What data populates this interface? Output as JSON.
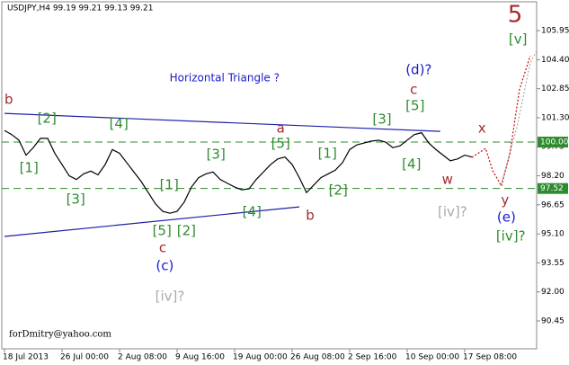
{
  "chart_data": {
    "type": "line",
    "title": "USDJPY,H4  99.19 99.21 99.13 99.21",
    "watermark": "forDmitry@yahoo.com",
    "color": "#000000",
    "categories": [
      "18 Jul 2013",
      null,
      null,
      null,
      null,
      null,
      null,
      null,
      "26 Jul 00:00",
      null,
      null,
      null,
      null,
      null,
      null,
      null,
      "2 Aug 08:00",
      null,
      null,
      null,
      null,
      null,
      null,
      null,
      "9 Aug 16:00",
      null,
      null,
      null,
      null,
      null,
      null,
      null,
      "19 Aug 00:00",
      null,
      null,
      null,
      null,
      null,
      null,
      null,
      "26 Aug 08:00",
      null,
      null,
      null,
      null,
      null,
      null,
      null,
      "2 Sep 16:00",
      null,
      null,
      null,
      null,
      null,
      null,
      null,
      "10 Sep 00:00",
      null,
      null,
      null,
      null,
      null,
      null,
      null,
      "17 Sep 08:00",
      null,
      null,
      null,
      null,
      null,
      null,
      null,
      null,
      null,
      null
    ],
    "values": [
      100.62,
      100.4,
      100.1,
      99.3,
      99.7,
      100.2,
      100.2,
      99.4,
      98.8,
      98.2,
      98.0,
      98.3,
      98.45,
      98.25,
      98.8,
      99.6,
      99.4,
      98.9,
      98.4,
      97.9,
      97.3,
      96.7,
      96.3,
      96.2,
      96.3,
      96.8,
      97.6,
      98.1,
      98.3,
      98.4,
      98.0,
      97.8,
      97.6,
      97.45,
      97.5,
      98.0,
      98.4,
      98.8,
      99.1,
      99.2,
      98.8,
      98.1,
      97.3,
      97.7,
      98.1,
      98.3,
      98.5,
      98.9,
      99.6,
      99.85,
      99.95,
      100.05,
      100.1,
      100.0,
      99.7,
      99.8,
      100.1,
      100.4,
      100.5,
      99.95,
      99.6,
      99.3,
      99.0,
      99.1,
      99.3,
      99.2,
      null,
      null,
      null,
      null,
      null,
      null,
      null,
      null,
      null
    ],
    "ylim": [
      88.96,
      107.49
    ],
    "yticks": [
      90.45,
      {
        "value": 92,
        "label": "92.00"
      },
      93.55,
      {
        "value": 95.1,
        "label": "95.10"
      },
      96.65,
      {
        "value": 98.2,
        "label": "98.20"
      },
      99.75,
      {
        "value": 101.3,
        "label": "101.30"
      },
      102.85,
      {
        "value": 104.4,
        "label": "104.40"
      },
      105.95
    ],
    "levels": [
      {
        "value": 100,
        "label": "100.00",
        "color": "#2e8b2e"
      },
      {
        "value": 97.52,
        "label": "97.52",
        "color": "#2e8b2e"
      }
    ],
    "trendlines": [
      {
        "from": [
          0,
          101.53
        ],
        "to": [
          60.6,
          100.57
        ],
        "color": "#1f1fa8"
      },
      {
        "from": [
          0,
          94.96
        ],
        "to": [
          41,
          96.54
        ],
        "color": "#1f1fa8"
      }
    ],
    "projections": [
      {
        "color": "#cc0000",
        "points": [
          [
            65,
            99.18
          ],
          [
            66.9,
            99.66
          ],
          [
            67.9,
            98.46
          ],
          [
            69.1,
            97.65
          ],
          [
            70.3,
            99.42
          ],
          [
            71.6,
            102.78
          ],
          [
            73.1,
            104.6
          ]
        ]
      },
      {
        "color": "#aaaaaa",
        "points": [
          [
            69.1,
            97.74
          ],
          [
            71.3,
            100.86
          ],
          [
            73.1,
            104.22
          ],
          [
            74.1,
            104.94
          ]
        ]
      }
    ],
    "annotations": [
      {
        "text": "b",
        "x": 0.6,
        "y": 102.25,
        "color": "#a52a2a"
      },
      {
        "text": "[2]",
        "x": 5.9,
        "y": 101.25,
        "color": "#2e8b2e"
      },
      {
        "text": "[1]",
        "x": 3.4,
        "y": 98.6,
        "color": "#2e8b2e"
      },
      {
        "text": "[3]",
        "x": 9.9,
        "y": 96.93,
        "color": "#2e8b2e"
      },
      {
        "text": "[4]",
        "x": 15.9,
        "y": 100.96,
        "color": "#2e8b2e"
      },
      {
        "text": "[5]",
        "x": 21.9,
        "y": 95.25,
        "color": "#2e8b2e"
      },
      {
        "text": "c",
        "x": 22,
        "y": 94.33,
        "color": "#a52a2a"
      },
      {
        "text": "(c)",
        "x": 22.3,
        "y": 93.37,
        "color": "#1a1acd"
      },
      {
        "text": "[2]",
        "x": 25.3,
        "y": 95.25,
        "color": "#2e8b2e"
      },
      {
        "text": "[1]",
        "x": 22.9,
        "y": 97.69,
        "color": "#2e8b2e"
      },
      {
        "text": "[3]",
        "x": 29.4,
        "y": 99.33,
        "color": "#2e8b2e"
      },
      {
        "text": "[4]",
        "x": 34.4,
        "y": 96.25,
        "color": "#2e8b2e"
      },
      {
        "text": "[5]",
        "x": 38.4,
        "y": 99.9,
        "color": "#2e8b2e"
      },
      {
        "text": "a",
        "x": 38.4,
        "y": 100.72,
        "color": "#a52a2a"
      },
      {
        "text": "b",
        "x": 42.5,
        "y": 96.06,
        "color": "#a52a2a"
      },
      {
        "text": "[1]",
        "x": 44.9,
        "y": 99.37,
        "color": "#2e8b2e"
      },
      {
        "text": "[2]",
        "x": 46.4,
        "y": 97.41,
        "color": "#2e8b2e"
      },
      {
        "text": "[3]",
        "x": 52.5,
        "y": 101.2,
        "color": "#2e8b2e"
      },
      {
        "text": "[4]",
        "x": 56.6,
        "y": 98.8,
        "color": "#2e8b2e"
      },
      {
        "text": "[5]",
        "x": 57.1,
        "y": 101.92,
        "color": "#2e8b2e"
      },
      {
        "text": "c",
        "x": 56.9,
        "y": 102.78,
        "color": "#a52a2a"
      },
      {
        "text": "(d)?",
        "x": 57.6,
        "y": 103.84,
        "color": "#1a1acd"
      },
      {
        "text": "x",
        "x": 66.4,
        "y": 100.72,
        "color": "#a52a2a"
      },
      {
        "text": "w",
        "x": 61.6,
        "y": 97.98,
        "color": "#a52a2a"
      },
      {
        "text": "[iv]?",
        "x": 62.3,
        "y": 96.25,
        "color": "#aaaaaa"
      },
      {
        "text": "y",
        "x": 69.6,
        "y": 96.88,
        "color": "#a52a2a"
      },
      {
        "text": "(e)",
        "x": 69.8,
        "y": 95.97,
        "color": "#1a1acd"
      },
      {
        "text": "[iv]?",
        "x": 70.4,
        "y": 94.96,
        "color": "#2e8b2e"
      },
      {
        "text": "5",
        "x": 71,
        "y": 106.77,
        "color": "#a52a2a"
      },
      {
        "text": "[v]",
        "x": 71.4,
        "y": 105.47,
        "color": "#2e8b2e"
      },
      {
        "text": "[iv]?",
        "x": 23,
        "y": 91.74,
        "color": "#aaaaaa"
      },
      {
        "text": "Horizontal Triangle ?",
        "x": 30.6,
        "y": 103.41,
        "color": "#1a1acd"
      }
    ]
  }
}
